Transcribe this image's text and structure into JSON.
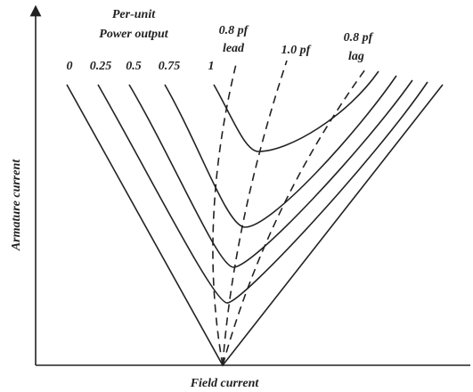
{
  "heading": [
    "Per-unit",
    "Power output"
  ],
  "curve_labels": [
    "0",
    "0.25",
    "0.5",
    "0.75",
    "1"
  ],
  "pf_labels": [
    [
      "0.8 pf",
      "lead"
    ],
    [
      "1.0 pf"
    ],
    [
      "0.8 pf",
      "lag"
    ]
  ],
  "axes": {
    "y_label": "Armature current",
    "x_label": "Field current"
  }
}
